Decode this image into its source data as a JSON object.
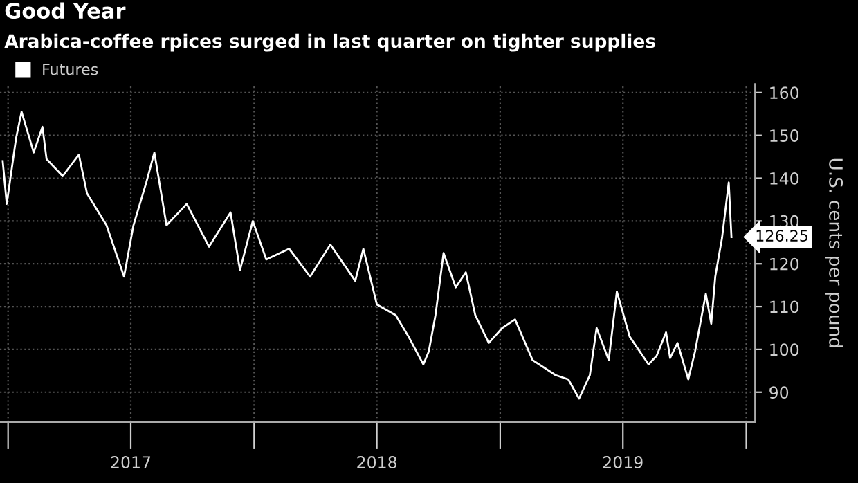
{
  "chart_data": {
    "type": "line",
    "title": "Good Year",
    "subtitle": "Arabica-coffee rpices surged in last quarter on tighter supplies",
    "ylabel": "U.S. cents per pound",
    "x": [
      "2016-12-24",
      "2016-12-30",
      "2017-01-13",
      "2017-01-21",
      "2017-02-08",
      "2017-02-21",
      "2017-02-27",
      "2017-03-23",
      "2017-04-16",
      "2017-04-28",
      "2017-05-27",
      "2017-06-22",
      "2017-07-06",
      "2017-07-25",
      "2017-08-06",
      "2017-08-24",
      "2017-09-23",
      "2017-10-26",
      "2017-11-27",
      "2017-12-11",
      "2017-12-30",
      "2018-01-19",
      "2018-02-22",
      "2018-03-25",
      "2018-04-24",
      "2018-05-31",
      "2018-06-12",
      "2018-07-02",
      "2018-07-30",
      "2018-08-18",
      "2018-09-09",
      "2018-09-17",
      "2018-09-27",
      "2018-10-09",
      "2018-10-27",
      "2018-11-11",
      "2018-11-25",
      "2018-12-15",
      "2019-01-04",
      "2019-01-23",
      "2019-02-18",
      "2019-03-24",
      "2019-04-12",
      "2019-04-28",
      "2019-05-14",
      "2019-05-24",
      "2019-06-11",
      "2019-06-23",
      "2019-07-12",
      "2019-08-09",
      "2019-08-21",
      "2019-09-04",
      "2019-09-10",
      "2019-09-21",
      "2019-10-07",
      "2019-10-17",
      "2019-11-02",
      "2019-11-10",
      "2019-11-16",
      "2019-11-26",
      "2019-12-06",
      "2019-12-10"
    ],
    "series": [
      {
        "name": "Futures",
        "color": "#ffffff",
        "values": [
          144,
          134,
          149.5,
          155.5,
          146,
          152,
          144.5,
          140.5,
          145.5,
          136.5,
          129,
          117,
          129,
          139,
          146,
          129,
          134,
          124,
          132,
          118.5,
          130,
          121,
          123.5,
          117,
          124.5,
          116,
          123.5,
          110.5,
          108,
          103,
          96.5,
          99.5,
          108,
          122.5,
          114.5,
          118,
          108,
          101.5,
          105,
          107,
          97.5,
          94,
          93,
          88.5,
          94,
          105,
          97.5,
          113.5,
          103,
          96.5,
          98.5,
          104,
          98,
          101.5,
          93,
          99.5,
          113,
          106,
          117,
          126,
          139,
          126.25
        ]
      }
    ],
    "xlim": [
      "2016-12-20",
      "2020-01-14"
    ],
    "ylim": [
      83,
      162
    ],
    "xticks": [
      {
        "value": "2017-01-01",
        "label": null
      },
      {
        "value": "2017-07-02",
        "label": "2017"
      },
      {
        "value": "2018-01-01",
        "label": null
      },
      {
        "value": "2018-07-02",
        "label": "2018"
      },
      {
        "value": "2019-01-01",
        "label": null
      },
      {
        "value": "2019-07-02",
        "label": "2019"
      },
      {
        "value": "2020-01-01",
        "label": null
      }
    ],
    "yticks": [
      90,
      100,
      110,
      120,
      130,
      140,
      150,
      160
    ],
    "annotations": [
      {
        "text": "126.25",
        "x": "2019-12-10",
        "y": 126.25
      }
    ],
    "grid": true,
    "legend": "top left",
    "line_style": "solid",
    "marker": "none"
  }
}
